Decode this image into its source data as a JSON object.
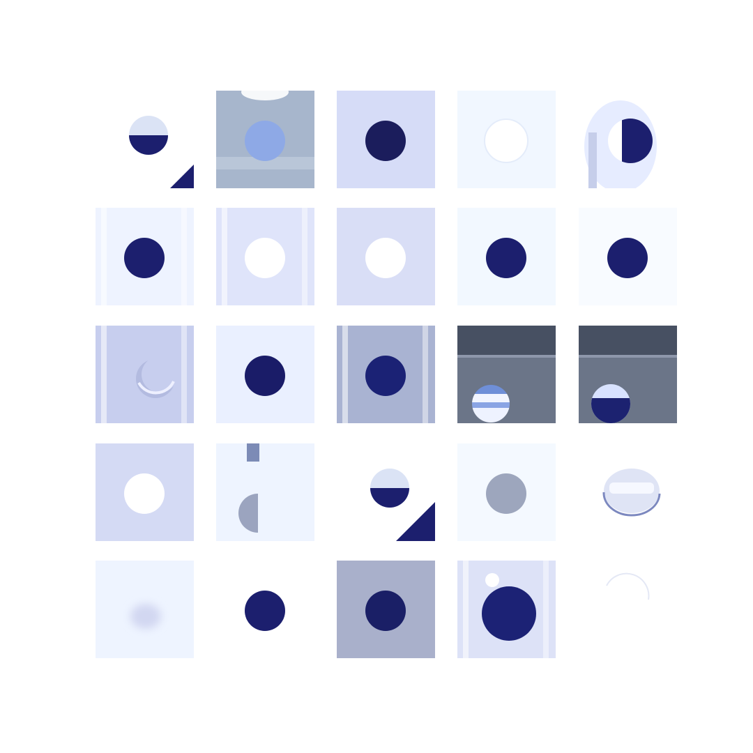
{
  "colors": {
    "background": "#ffffff",
    "hole_dark": "#1c1f6e",
    "hole_light": "#ffffff",
    "metal_light": "#dfe4fa",
    "metal_grey": "#a9b3d2",
    "metal_dark": "#5d6679"
  },
  "grid": {
    "rows": 5,
    "cols": 5,
    "tiles": [
      {
        "bg": "#ffffff",
        "hole": "half-top",
        "hole_color": "#1c1f6e",
        "corner": "bottom-right-triangle"
      },
      {
        "bg": "#a7b6cc",
        "hole": "filled",
        "hole_color": "#8ea9e6",
        "stripe": "top-white"
      },
      {
        "bg": "#d6dcf7",
        "hole": "filled",
        "hole_color": "#1b1d5c"
      },
      {
        "bg": "#f1f7ff",
        "hole": "faint-ring",
        "hole_color": "#ffffff"
      },
      {
        "bg": "#ffffff",
        "hole": "half-right",
        "hole_color": "#1c1f6e",
        "stripe": "cylinder"
      },
      {
        "bg": "#eef3ff",
        "hole": "filled",
        "hole_color": "#1c1f6e",
        "stripe": "vertical-edges"
      },
      {
        "bg": "#dfe4fa",
        "hole": "filled",
        "hole_color": "#ffffff",
        "stripe": "vertical-edges"
      },
      {
        "bg": "#d9def6",
        "hole": "filled",
        "hole_color": "#ffffff"
      },
      {
        "bg": "#f2f8ff",
        "hole": "filled",
        "hole_color": "#1c1f6e"
      },
      {
        "bg": "#f8fbff",
        "hole": "filled",
        "hole_color": "#1c1f6e"
      },
      {
        "bg": "#c7ceee",
        "hole": "crescent",
        "hole_color": "#eef0ff",
        "stripe": "vertical-edges"
      },
      {
        "bg": "#eaf0ff",
        "hole": "filled",
        "hole_color": "#1a1c68"
      },
      {
        "bg": "#a9b3d2",
        "hole": "filled",
        "hole_color": "#1b2275",
        "stripe": "vertical-edges"
      },
      {
        "bg": "#5d6679",
        "hole": "striped-low",
        "hole_color": "#e8eeff",
        "stripe": "top-band"
      },
      {
        "bg": "#5d6679",
        "hole": "half-bottom-low",
        "hole_color": "#1c2270",
        "stripe": "top-band"
      },
      {
        "bg": "#d4daf4",
        "hole": "filled",
        "hole_color": "#ffffff"
      },
      {
        "bg": "#eef4ff",
        "hole": "grey-split",
        "hole_color": "#9ba4bf",
        "stripe": "top-notch"
      },
      {
        "bg": "#ffffff",
        "hole": "half-top",
        "hole_color": "#1c1f6e",
        "corner": "bottom-right-triangle"
      },
      {
        "bg": "#f4f9ff",
        "hole": "filled",
        "hole_color": "#9da6bd"
      },
      {
        "bg": "#ffffff",
        "hole": "glass",
        "hole_color": "#dfe4f5"
      },
      {
        "bg": "#eef4ff",
        "hole": "blur",
        "hole_color": "#d2d7f1"
      },
      {
        "bg": "#ffffff",
        "hole": "filled",
        "hole_color": "#1c1f6e"
      },
      {
        "bg": "#a9b0cb",
        "hole": "filled",
        "hole_color": "#1a1f66"
      },
      {
        "bg": "#dde2f7",
        "hole": "filled-big",
        "hole_color": "#1c2275",
        "stripe": "vertical-edges"
      },
      {
        "bg": "#ffffff",
        "hole": "faint-arc",
        "hole_color": "#e4e8f5"
      }
    ]
  }
}
